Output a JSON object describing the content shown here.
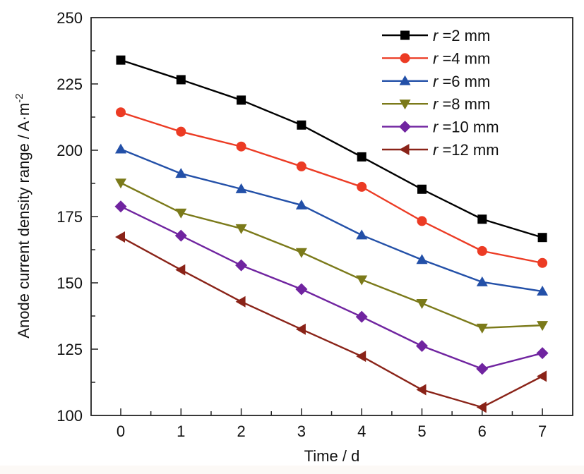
{
  "chart_data": {
    "type": "line",
    "title": "",
    "xlabel": "Time / d",
    "ylabel_main": "Anode current density range / A·m",
    "ylabel_sup": "-2",
    "xlim": [
      -0.5,
      7.5
    ],
    "ylim": [
      100,
      250
    ],
    "x": [
      0,
      1,
      2,
      3,
      4,
      5,
      6,
      7
    ],
    "xticks": [
      "0",
      "1",
      "2",
      "3",
      "4",
      "5",
      "6",
      "7"
    ],
    "yticks": [
      100,
      125,
      150,
      175,
      200,
      225,
      250
    ],
    "ytick_labels": [
      "100",
      "125",
      "150",
      "175",
      "200",
      "225",
      "250"
    ],
    "grid": false,
    "legend_position": "top-right",
    "series": [
      {
        "name_var": "r",
        "name_rest": " =2 mm",
        "color": "#000000",
        "marker": "square",
        "values": [
          234.0,
          226.6,
          218.9,
          209.5,
          197.5,
          185.3,
          174.0,
          167.1
        ]
      },
      {
        "name_var": "r",
        "name_rest": " =4 mm",
        "color": "#ec3b24",
        "marker": "circle",
        "values": [
          214.3,
          207.0,
          201.4,
          193.9,
          186.2,
          173.3,
          162.0,
          157.5
        ]
      },
      {
        "name_var": "r",
        "name_rest": " =6 mm",
        "color": "#2350a8",
        "marker": "triangle-up",
        "values": [
          200.4,
          191.2,
          185.4,
          179.3,
          168.0,
          158.7,
          150.3,
          146.8
        ]
      },
      {
        "name_var": "r",
        "name_rest": " =8 mm",
        "color": "#7b7a1a",
        "marker": "triangle-down",
        "values": [
          187.7,
          176.4,
          170.5,
          161.5,
          151.2,
          142.3,
          133.0,
          134.0
        ]
      },
      {
        "name_var": "r",
        "name_rest": " =10 mm",
        "color": "#7024a0",
        "marker": "diamond",
        "values": [
          178.8,
          167.8,
          156.6,
          147.6,
          137.2,
          126.2,
          117.6,
          123.5
        ]
      },
      {
        "name_var": "r",
        "name_rest": " =12 mm",
        "color": "#8a2318",
        "marker": "triangle-left",
        "values": [
          167.3,
          154.9,
          142.9,
          132.5,
          122.3,
          109.7,
          103.1,
          114.8
        ]
      }
    ]
  }
}
